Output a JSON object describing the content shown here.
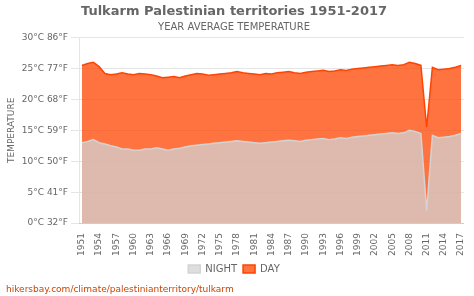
{
  "chart_data": {
    "type": "area",
    "title": "Tulkarm Palestinian territories 1951-2017",
    "subtitle": "YEAR AVERAGE TEMPERATURE",
    "ylabel": "TEMPERATURE",
    "annotation": "hikersbay.com/climate/palestinianterritory/tulkarm",
    "x": [
      1951,
      1952,
      1953,
      1954,
      1955,
      1956,
      1957,
      1958,
      1959,
      1960,
      1961,
      1962,
      1963,
      1964,
      1965,
      1966,
      1967,
      1968,
      1969,
      1970,
      1971,
      1972,
      1973,
      1974,
      1975,
      1976,
      1977,
      1978,
      1979,
      1980,
      1981,
      1982,
      1983,
      1984,
      1985,
      1986,
      1987,
      1988,
      1989,
      1990,
      1991,
      1992,
      1993,
      1994,
      1995,
      1996,
      1997,
      1998,
      1999,
      2000,
      2001,
      2002,
      2003,
      2004,
      2005,
      2006,
      2007,
      2008,
      2009,
      2010,
      2011,
      2012,
      2013,
      2014,
      2015,
      2016,
      2017
    ],
    "series": [
      {
        "name": "NIGHT",
        "color": "#d3d3d3",
        "values": [
          13.0,
          13.2,
          13.5,
          13.0,
          12.8,
          12.5,
          12.3,
          12.0,
          12.0,
          11.8,
          11.8,
          12.0,
          12.0,
          12.2,
          12.0,
          11.8,
          12.0,
          12.1,
          12.3,
          12.5,
          12.6,
          12.7,
          12.8,
          12.9,
          13.0,
          13.1,
          13.2,
          13.3,
          13.2,
          13.1,
          13.0,
          12.9,
          13.0,
          13.1,
          13.2,
          13.3,
          13.4,
          13.3,
          13.2,
          13.4,
          13.5,
          13.6,
          13.7,
          13.5,
          13.6,
          13.8,
          13.7,
          13.9,
          14.0,
          14.1,
          14.2,
          14.3,
          14.4,
          14.5,
          14.6,
          14.5,
          14.6,
          15.0,
          14.8,
          14.5,
          2.0,
          14.2,
          13.8,
          13.9,
          14.0,
          14.2,
          14.5
        ]
      },
      {
        "name": "DAY",
        "color": "#ff4400",
        "values": [
          25.5,
          25.8,
          26.0,
          25.3,
          24.2,
          24.0,
          24.1,
          24.3,
          24.1,
          24.0,
          24.2,
          24.1,
          24.0,
          23.8,
          23.5,
          23.6,
          23.7,
          23.5,
          23.8,
          24.0,
          24.2,
          24.1,
          23.9,
          24.0,
          24.1,
          24.2,
          24.3,
          24.5,
          24.3,
          24.2,
          24.1,
          24.0,
          24.2,
          24.1,
          24.3,
          24.4,
          24.5,
          24.3,
          24.2,
          24.4,
          24.5,
          24.6,
          24.7,
          24.5,
          24.6,
          24.8,
          24.7,
          24.9,
          25.0,
          25.1,
          25.2,
          25.3,
          25.4,
          25.5,
          25.6,
          25.5,
          25.6,
          26.0,
          25.8,
          25.5,
          15.5,
          25.2,
          24.8,
          24.9,
          25.0,
          25.2,
          25.5
        ]
      }
    ],
    "xlim": [
      1950.5,
      2017.5
    ],
    "xticks": [
      1951,
      1954,
      1957,
      1960,
      1963,
      1966,
      1969,
      1972,
      1975,
      1978,
      1981,
      1984,
      1987,
      1990,
      1993,
      1996,
      1999,
      2002,
      2005,
      2008,
      2011,
      2014,
      2017
    ],
    "ylim": [
      0,
      30
    ],
    "yticks": [
      {
        "value": 0,
        "label": "0°C 32°F"
      },
      {
        "value": 5,
        "label": "5°C 41°F"
      },
      {
        "value": 10,
        "label": "10°C 50°F"
      },
      {
        "value": 15,
        "label": "15°C 59°F"
      },
      {
        "value": 20,
        "label": "20°C 68°F"
      },
      {
        "value": 25,
        "label": "25°C 77°F"
      },
      {
        "value": 30,
        "label": "30°C 86°F"
      }
    ],
    "grid": true,
    "legend": "bottom"
  }
}
